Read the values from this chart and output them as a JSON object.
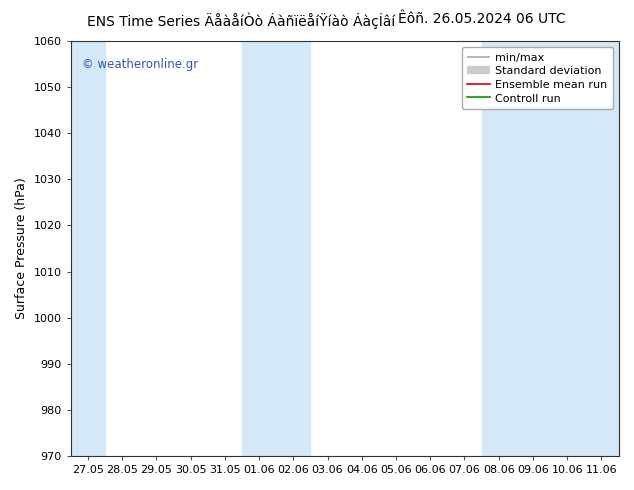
{
  "title_left": "ENS Time Series ÄåàåíÒò ÁàñïëåíŸíàò ÁàçÍâí",
  "title_right": "Êôñ. 26.05.2024 06 UTC",
  "ylabel": "Surface Pressure (hPa)",
  "ylim": [
    970,
    1060
  ],
  "yticks": [
    970,
    980,
    990,
    1000,
    1010,
    1020,
    1030,
    1040,
    1050,
    1060
  ],
  "x_labels": [
    "27.05",
    "28.05",
    "29.05",
    "30.05",
    "31.05",
    "01.06",
    "02.06",
    "03.06",
    "04.06",
    "05.06",
    "06.06",
    "07.06",
    "08.06",
    "09.06",
    "10.06",
    "11.06"
  ],
  "fig_bg_color": "#ffffff",
  "plot_bg_color": "#ffffff",
  "watermark": "© weatheronline.gr",
  "watermark_color": "#3355bb",
  "legend_items": [
    "min/max",
    "Standard deviation",
    "Ensemble mean run",
    "Controll run"
  ],
  "legend_line_colors": [
    "#aaaaaa",
    "#cccccc",
    "#cc0000",
    "#009900"
  ],
  "stripe_color": "#d5e8f7",
  "stripe_indices": [
    0,
    5,
    6,
    12,
    13,
    14,
    15
  ],
  "title_fontsize": 10,
  "ylabel_fontsize": 9,
  "tick_fontsize": 8,
  "legend_fontsize": 8
}
